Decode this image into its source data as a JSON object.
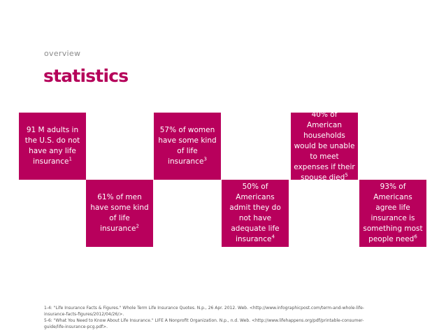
{
  "header": {
    "overline": "overview",
    "title": "statistics"
  },
  "stats": [
    {
      "text": "91 M adults in the U.S. do not have any life insurance",
      "ref": "1"
    },
    {
      "text": "61% of men have some kind of life insurance",
      "ref": "2"
    },
    {
      "text": "57% of women have some kind of life insurance",
      "ref": "3"
    },
    {
      "text": "50% of Americans admit they do not have adequate life insurance",
      "ref": "4"
    },
    {
      "text": "40% of American households would be unable to meet expenses if their spouse died",
      "ref": "5"
    },
    {
      "text": "93% of Americans agree life insurance is something most people need",
      "ref": "6"
    }
  ],
  "footnotes": [
    "1-4: \"Life Insurance Facts & Figures.\" Whole Term Life Insurance Quotes. N.p., 26 Apr. 2012. Web. <http://www.infographicpost.com/term-and-whole-life-insurance-facts-figures/2012/04/26/>.",
    "5-6: \"What You Need to Know About Life Insurance.\" LIFE A Nonprofit Organization. N.p., n.d. Web. <http://www.lifehappens.org/pdf/printable-consumer-guide/life-insurance-pcg.pdf>."
  ],
  "colors": {
    "accent": "#b8005c",
    "title": "#b5005a",
    "muted": "#8c8c8c"
  }
}
